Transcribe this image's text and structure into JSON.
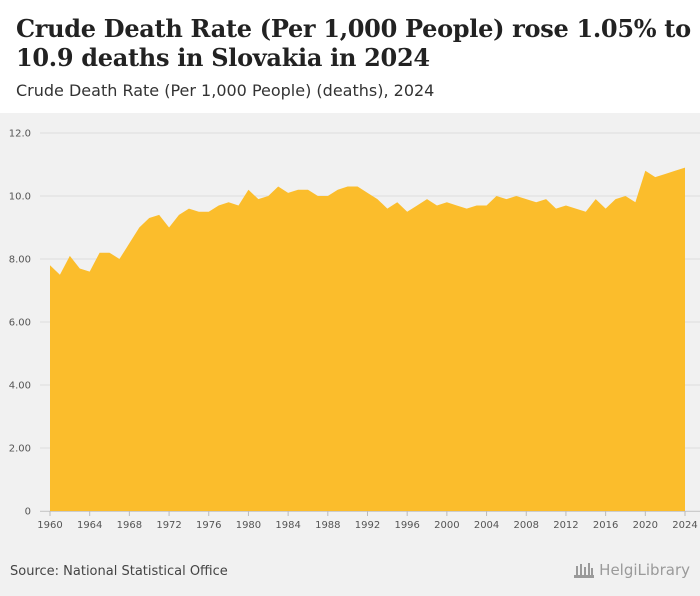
{
  "header": {
    "title": "Crude Death Rate (Per 1,000 People) rose 1.05% to 10.9 deaths in Slovakia in 2024",
    "subtitle": "Crude Death Rate (Per 1,000 People) (deaths), 2024"
  },
  "footer": {
    "source": "Source: National Statistical Office",
    "brand": "HelgiLibrary"
  },
  "colors": {
    "area": "#fbbd2c",
    "grid": "#dddddd",
    "background": "#f1f1f1"
  },
  "chart_data": {
    "type": "area",
    "title": "Crude Death Rate (Per 1,000 People) rose 1.05% to 10.9 deaths in Slovakia in 2024",
    "subtitle": "Crude Death Rate (Per 1,000 People) (deaths), 2024",
    "xlabel": "",
    "ylabel": "",
    "ylim": [
      0,
      12
    ],
    "yticks": [
      0,
      2,
      4,
      6,
      8,
      10,
      12
    ],
    "ytick_labels": [
      "0",
      "2.00",
      "4.00",
      "6.00",
      "8.00",
      "10.0",
      "12.0"
    ],
    "xticks": [
      1960,
      1964,
      1968,
      1972,
      1976,
      1980,
      1984,
      1988,
      1992,
      1996,
      2000,
      2004,
      2008,
      2012,
      2016,
      2020,
      2024
    ],
    "xtick_labels": [
      "1960",
      "1964",
      "1968",
      "1972",
      "1976",
      "1980",
      "1984",
      "1988",
      "1992",
      "1996",
      "2000",
      "2004",
      "2008",
      "2012",
      "2016",
      "2020",
      "2024"
    ],
    "grid": true,
    "series": [
      {
        "name": "Crude Death Rate (Per 1,000 People)",
        "x": [
          1960,
          1961,
          1962,
          1963,
          1964,
          1965,
          1966,
          1967,
          1968,
          1969,
          1970,
          1971,
          1972,
          1973,
          1974,
          1975,
          1976,
          1977,
          1978,
          1979,
          1980,
          1981,
          1982,
          1983,
          1984,
          1985,
          1986,
          1987,
          1988,
          1989,
          1990,
          1991,
          1992,
          1993,
          1994,
          1995,
          1996,
          1997,
          1998,
          1999,
          2000,
          2001,
          2002,
          2003,
          2004,
          2005,
          2006,
          2007,
          2008,
          2009,
          2010,
          2011,
          2012,
          2013,
          2014,
          2015,
          2016,
          2017,
          2018,
          2019,
          2020,
          2021,
          2022,
          2023,
          2024
        ],
        "values": [
          7.8,
          7.5,
          8.1,
          7.7,
          7.6,
          8.2,
          8.2,
          8.0,
          8.5,
          9.0,
          9.3,
          9.4,
          9.0,
          9.4,
          9.6,
          9.5,
          9.5,
          9.7,
          9.8,
          9.7,
          10.2,
          9.9,
          10.0,
          10.3,
          10.1,
          10.2,
          10.2,
          10.0,
          10.0,
          10.2,
          10.3,
          10.3,
          10.1,
          9.9,
          9.6,
          9.8,
          9.5,
          9.7,
          9.9,
          9.7,
          9.8,
          9.7,
          9.6,
          9.7,
          9.7,
          10.0,
          9.9,
          10.0,
          9.9,
          9.8,
          9.9,
          9.6,
          9.7,
          9.6,
          9.5,
          9.9,
          9.6,
          9.9,
          10.0,
          9.8,
          10.8,
          10.6,
          10.7,
          10.8,
          10.9
        ]
      }
    ]
  }
}
